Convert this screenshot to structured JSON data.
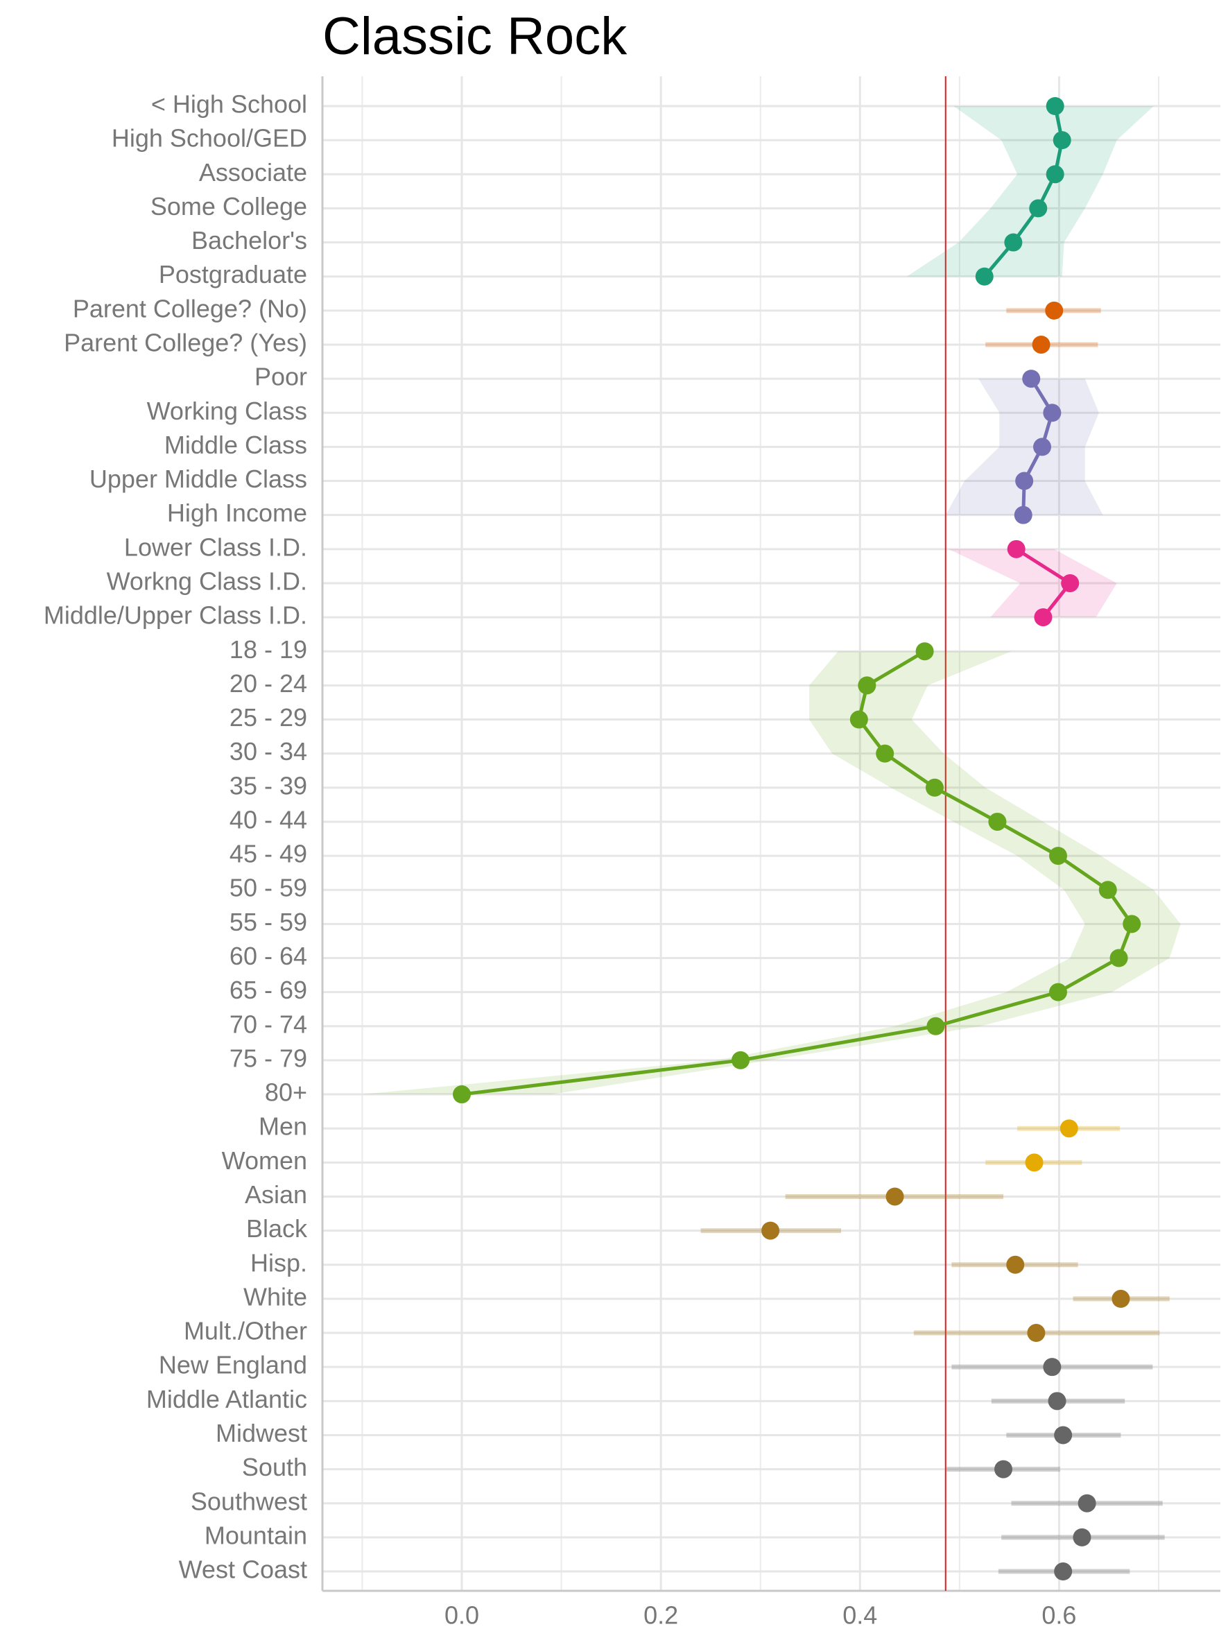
{
  "chart_data": {
    "type": "dot-interval",
    "title": "Classic Rock",
    "xlim": [
      -0.14,
      0.762
    ],
    "xticks": [
      {
        "value": 0,
        "label": "0.0"
      },
      0.2,
      0.4,
      0.6
    ],
    "minor_xticks": [
      -0.1,
      0.1,
      0.3,
      0.5,
      0.7
    ],
    "reference_line": {
      "value": 0.486,
      "color": "#e41a1c"
    },
    "grid": true,
    "series": [
      {
        "color": "#1b9e77",
        "connected": true,
        "categories": [
          "< High School",
          "High School/GED",
          "Associate",
          "Some College",
          "Bachelor's",
          "Postgraduate"
        ],
        "values": [
          0.596,
          0.603,
          0.596,
          0.579,
          0.554,
          0.525
        ],
        "lower": [
          0.494,
          0.542,
          0.558,
          0.531,
          0.499,
          0.447
        ],
        "upper": [
          0.695,
          0.658,
          0.644,
          0.626,
          0.605,
          0.603
        ]
      },
      {
        "color": "#d95f02",
        "connected": false,
        "categories": [
          "Parent College? (No)",
          "Parent College? (Yes)"
        ],
        "values": [
          0.595,
          0.582
        ],
        "lower": [
          0.547,
          0.526
        ],
        "upper": [
          0.642,
          0.639
        ]
      },
      {
        "color": "#7570b3",
        "connected": true,
        "categories": [
          "Poor",
          "Working Class",
          "Middle Class",
          "Upper Middle Class",
          "High Income"
        ],
        "values": [
          0.572,
          0.593,
          0.583,
          0.565,
          0.564
        ],
        "lower": [
          0.519,
          0.54,
          0.54,
          0.505,
          0.486
        ],
        "upper": [
          0.626,
          0.64,
          0.626,
          0.626,
          0.644
        ]
      },
      {
        "color": "#e7298a",
        "connected": true,
        "categories": [
          "Lower Class I.D.",
          "Workng Class I.D.",
          "Middle/Upper Class I.D."
        ],
        "values": [
          0.557,
          0.611,
          0.584
        ],
        "lower": [
          0.489,
          0.561,
          0.531
        ],
        "upper": [
          0.595,
          0.658,
          0.637
        ]
      },
      {
        "color": "#66a61e",
        "connected": true,
        "categories": [
          "18 - 19",
          "20 - 24",
          "25 - 29",
          "30 - 34",
          "35 - 39",
          "40 - 44",
          "45 - 49",
          "50 - 59",
          "55 - 59",
          "60 - 64",
          "65 - 69",
          "70 - 74",
          "75 - 79",
          "80+"
        ],
        "values": [
          0.465,
          0.407,
          0.399,
          0.425,
          0.475,
          0.538,
          0.599,
          0.649,
          0.673,
          0.66,
          0.599,
          0.476,
          0.28,
          0
        ],
        "lower": [
          0.378,
          0.349,
          0.349,
          0.372,
          0.431,
          0.494,
          0.558,
          0.605,
          0.626,
          0.611,
          0.547,
          0.435,
          0.256,
          -0.1
        ],
        "upper": [
          0.552,
          0.468,
          0.452,
          0.484,
          0.526,
          0.584,
          0.642,
          0.695,
          0.722,
          0.711,
          0.653,
          0.521,
          0.309,
          0.09
        ]
      },
      {
        "color": "#e6ab02",
        "connected": false,
        "categories": [
          "Men",
          "Women"
        ],
        "values": [
          0.61,
          0.575
        ],
        "lower": [
          0.558,
          0.526
        ],
        "upper": [
          0.661,
          0.623
        ]
      },
      {
        "color": "#a6761d",
        "connected": false,
        "categories": [
          "Asian",
          "Black",
          "Hisp.",
          "White",
          "Mult./Other"
        ],
        "values": [
          0.435,
          0.31,
          0.556,
          0.662,
          0.577
        ],
        "lower": [
          0.325,
          0.24,
          0.492,
          0.614,
          0.454
        ],
        "upper": [
          0.544,
          0.381,
          0.619,
          0.711,
          0.701
        ]
      },
      {
        "color": "#666666",
        "connected": false,
        "categories": [
          "New England",
          "Middle Atlantic",
          "Midwest",
          "South",
          "Southwest",
          "Mountain",
          "West Coast"
        ],
        "values": [
          0.593,
          0.598,
          0.604,
          0.544,
          0.628,
          0.623,
          0.604
        ],
        "lower": [
          0.492,
          0.532,
          0.547,
          0.487,
          0.552,
          0.542,
          0.539
        ],
        "upper": [
          0.694,
          0.666,
          0.662,
          0.601,
          0.704,
          0.706,
          0.671
        ]
      }
    ]
  }
}
